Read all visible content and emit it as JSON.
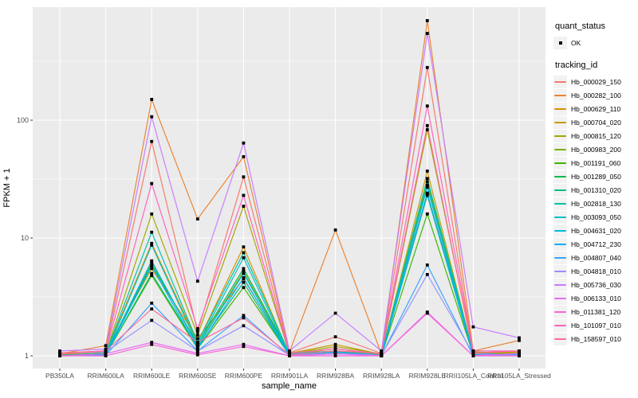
{
  "colors": {
    "panel_bg": "#EBEBEB",
    "grid": "#FFFFFF",
    "tick_text": "#4D4D4D",
    "axis_text": "#000000",
    "point": "#000000"
  },
  "axes": {
    "x_title": "sample_name",
    "y_title": "FPKM + 1",
    "y_tick_labels": [
      "1",
      "10",
      "100"
    ]
  },
  "legend": {
    "quant_status": {
      "title": "quant_status",
      "items": [
        {
          "label": "OK",
          "symbol": "black-square-point"
        }
      ]
    },
    "tracking": {
      "title": "tracking_id"
    }
  },
  "chart_data": {
    "type": "line",
    "title": "",
    "xlabel": "sample_name",
    "ylabel": "FPKM + 1",
    "yscale": "log10",
    "ylim": [
      0.79,
      890
    ],
    "y_major_ticks": [
      1,
      10,
      100
    ],
    "y_minor_ticks": [
      3.162,
      31.62,
      316.2
    ],
    "grid": "on",
    "legend_position": "right",
    "point_shape": "filled-black-square",
    "categories": [
      "PB350LA",
      "RRIM600LA",
      "RRIM600LE",
      "RRIM600SE",
      "RRIM600PE",
      "RRIM901LA",
      "RRIM928BA",
      "RRIM928LA",
      "RRIM928LE",
      "RRII105LA_Control",
      "RRII105LA_Stressed"
    ],
    "series": [
      {
        "name": "Hb_000029_150",
        "color": "#F8766D",
        "values": [
          1.06,
          1.1,
          66,
          1.6,
          33,
          1.06,
          1.45,
          1.05,
          280,
          1.06,
          1.1
        ]
      },
      {
        "name": "Hb_000282_100",
        "color": "#EA8331",
        "values": [
          1.04,
          1.22,
          150,
          14.5,
          49,
          1.08,
          11.7,
          1.04,
          700,
          1.1,
          1.35
        ]
      },
      {
        "name": "Hb_000629_110",
        "color": "#D89000",
        "values": [
          1.02,
          1.06,
          9.0,
          1.3,
          8.4,
          1.02,
          1.15,
          1.02,
          24,
          1.04,
          1.06
        ]
      },
      {
        "name": "Hb_000704_020",
        "color": "#C09B00",
        "values": [
          1.03,
          1.1,
          5.5,
          1.4,
          4.5,
          1.05,
          1.25,
          1.03,
          37,
          1.05,
          1.08
        ]
      },
      {
        "name": "Hb_000815_120",
        "color": "#A3A500",
        "values": [
          1.02,
          1.06,
          16,
          1.5,
          18.6,
          1.04,
          1.2,
          1.04,
          83,
          1.08,
          1.05
        ]
      },
      {
        "name": "Hb_000983_200",
        "color": "#7CAE00",
        "values": [
          1.01,
          1.04,
          6.3,
          1.2,
          5.2,
          1.02,
          1.1,
          1.01,
          30,
          1.04,
          1.04
        ]
      },
      {
        "name": "Hb_001191_060",
        "color": "#39B600",
        "values": [
          1.0,
          1.02,
          4.8,
          1.15,
          3.8,
          1.01,
          1.1,
          1.0,
          16,
          1.02,
          1.04
        ]
      },
      {
        "name": "Hb_001289_050",
        "color": "#00BB4E",
        "values": [
          1.01,
          1.05,
          6.0,
          1.25,
          5.5,
          1.04,
          1.08,
          1.01,
          28,
          1.04,
          1.02
        ]
      },
      {
        "name": "Hb_001310_020",
        "color": "#00BF7D",
        "values": [
          1.0,
          1.02,
          5.0,
          1.18,
          4.2,
          1.0,
          1.06,
          1.0,
          23,
          1.01,
          1.04
        ]
      },
      {
        "name": "Hb_002818_130",
        "color": "#00C1A3",
        "values": [
          1.01,
          1.05,
          11.2,
          1.3,
          7.5,
          1.04,
          1.1,
          1.04,
          32,
          1.05,
          1.02
        ]
      },
      {
        "name": "Hb_003093_050",
        "color": "#00BFC4",
        "values": [
          1.0,
          1.02,
          8.7,
          1.24,
          6.8,
          1.01,
          1.05,
          1.0,
          28,
          1.01,
          1.04
        ]
      },
      {
        "name": "Hb_004631_020",
        "color": "#00BADE",
        "values": [
          1.0,
          1.04,
          6.4,
          1.2,
          5.0,
          1.02,
          1.08,
          1.01,
          27,
          1.04,
          1.01
        ]
      },
      {
        "name": "Hb_004712_230",
        "color": "#00B0F6",
        "values": [
          1.0,
          1.02,
          5.8,
          1.15,
          4.6,
          1.0,
          1.05,
          1.0,
          24,
          1.01,
          1.0
        ]
      },
      {
        "name": "Hb_004807_040",
        "color": "#35A2FF",
        "values": [
          1.0,
          1.01,
          2.8,
          1.1,
          2.2,
          1.0,
          1.04,
          1.0,
          5.9,
          1.0,
          1.04
        ]
      },
      {
        "name": "Hb_004818_010",
        "color": "#9590FF",
        "values": [
          1.05,
          1.08,
          2.0,
          1.1,
          1.8,
          1.01,
          1.05,
          1.01,
          4.9,
          1.04,
          1.01
        ]
      },
      {
        "name": "Hb_005736_030",
        "color": "#C77CFF",
        "values": [
          1.1,
          1.14,
          107,
          4.3,
          64,
          1.1,
          2.3,
          1.1,
          545,
          1.76,
          1.42
        ]
      },
      {
        "name": "Hb_006133_010",
        "color": "#E76BF3",
        "values": [
          1.0,
          1.04,
          1.3,
          1.05,
          1.25,
          1.0,
          1.04,
          1.0,
          2.35,
          1.0,
          1.05
        ]
      },
      {
        "name": "Hb_011381_120",
        "color": "#FA62DB",
        "values": [
          1.0,
          1.0,
          1.25,
          1.02,
          1.2,
          1.0,
          1.0,
          1.0,
          2.3,
          1.0,
          1.0
        ]
      },
      {
        "name": "Hb_101097_010",
        "color": "#FF62BC",
        "values": [
          1.04,
          1.1,
          29,
          1.7,
          23,
          1.05,
          1.15,
          1.04,
          132,
          1.1,
          1.1
        ]
      },
      {
        "name": "Hb_158597_010",
        "color": "#FF6A98",
        "values": [
          1.05,
          1.1,
          2.5,
          1.3,
          2.1,
          1.02,
          1.1,
          1.05,
          90,
          1.05,
          1.1
        ]
      }
    ]
  }
}
